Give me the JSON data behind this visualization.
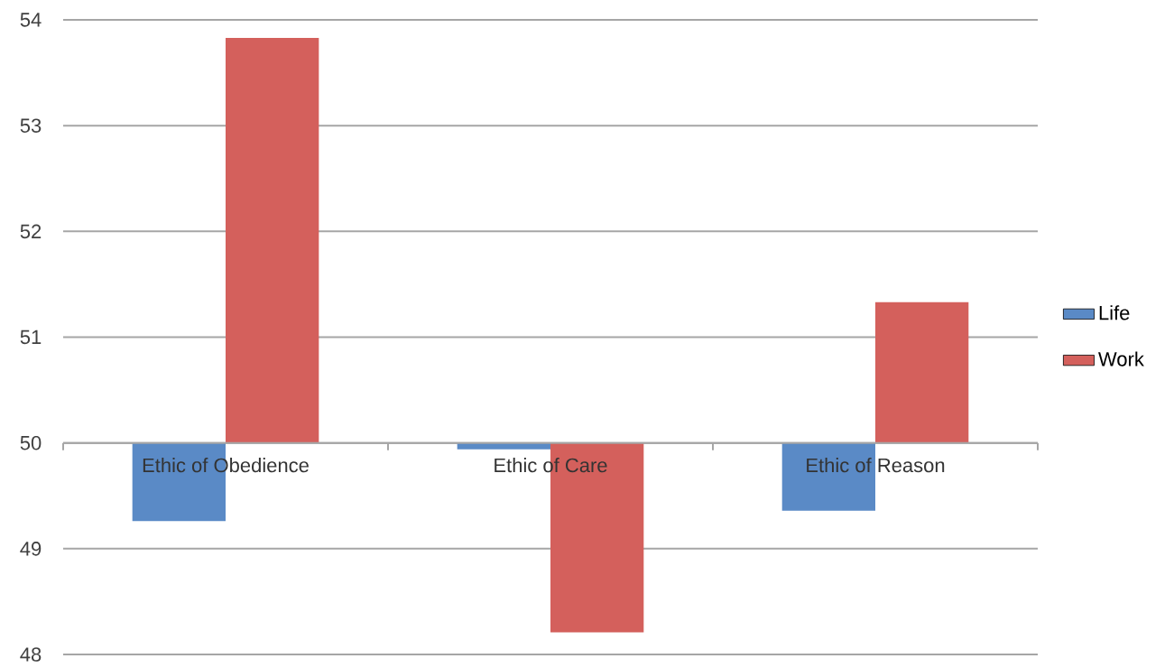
{
  "chart_data": {
    "type": "bar",
    "categories": [
      "Ethic of Obedience",
      "Ethic of Care",
      "Ethic of Reason"
    ],
    "series": [
      {
        "name": "Life",
        "color": "#5a8ac6",
        "base": [
          50,
          50,
          50
        ],
        "values": [
          -0.74,
          -0.06,
          -0.64
        ]
      },
      {
        "name": "Work",
        "color": "#d4605c",
        "base": [
          50,
          50,
          50
        ],
        "values": [
          3.83,
          -1.79,
          1.33
        ]
      }
    ],
    "ylim": [
      48,
      54
    ],
    "yticks": [
      48,
      49,
      50,
      51,
      52,
      53,
      54
    ],
    "grid": "y",
    "legend": "right"
  }
}
